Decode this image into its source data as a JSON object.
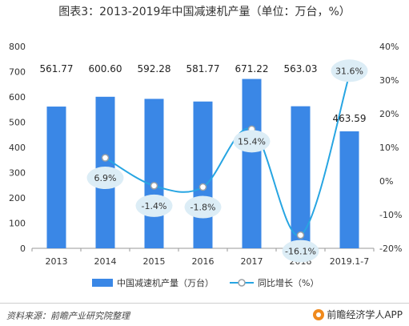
{
  "title": "图表3：2013-2019年中国减速机产量（单位：万台，%）",
  "source": "资料来源：前瞻产业研究院整理",
  "brand": "前瞻经济学人APP",
  "colors": {
    "bar": "#3a87e6",
    "line": "#27a5e2",
    "bubble": "#dcedf6"
  },
  "chart_data": {
    "type": "bar",
    "categories": [
      "2013",
      "2014",
      "2015",
      "2016",
      "2017",
      "2018",
      "2019.1-7"
    ],
    "series": [
      {
        "name": "中国减速机产量（万台）",
        "type": "bar",
        "axis": "left",
        "values": [
          561.77,
          600.6,
          592.28,
          581.77,
          671.22,
          563.03,
          463.59
        ],
        "labels": [
          "561.77",
          "600.60",
          "592.28",
          "581.77",
          "671.22",
          "563.03",
          "463.59"
        ]
      },
      {
        "name": "同比增长（%）",
        "type": "line",
        "axis": "right",
        "values": [
          null,
          6.9,
          -1.4,
          -1.8,
          15.4,
          -16.1,
          31.6
        ],
        "labels": [
          "",
          "6.9%",
          "-1.4%",
          "-1.8%",
          "15.4%",
          "-16.1%",
          "31.6%"
        ]
      }
    ],
    "ylim_left": [
      0,
      800
    ],
    "yticks_left": [
      "0",
      "100",
      "200",
      "300",
      "400",
      "500",
      "600",
      "700",
      "800"
    ],
    "ylim_right": [
      -20,
      40
    ],
    "yticks_right": [
      "-20%",
      "-10%",
      "0%",
      "10%",
      "20%",
      "30%",
      "40%"
    ],
    "legend": "bottom"
  }
}
